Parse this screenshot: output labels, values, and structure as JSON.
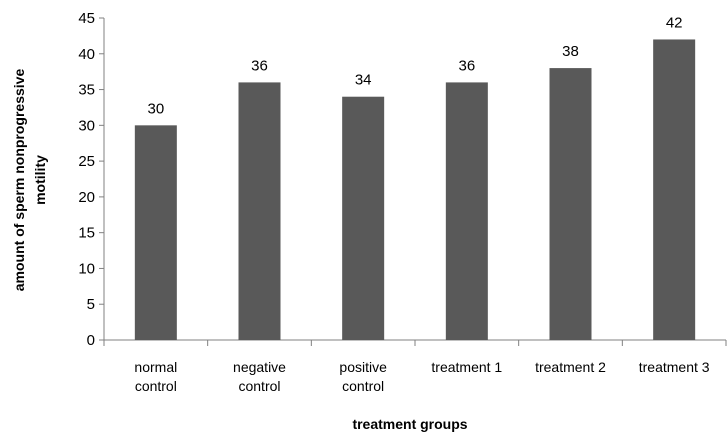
{
  "chart_data": {
    "type": "bar",
    "title": "",
    "xlabel": "treatment groups",
    "ylabel_lines": [
      "amount  of sperm nonprogressive",
      "motility"
    ],
    "ylim": [
      0,
      45
    ],
    "ytick_step": 5,
    "yticks": [
      "0",
      "5",
      "10",
      "15",
      "20",
      "25",
      "30",
      "35",
      "40",
      "45"
    ],
    "categories": [
      [
        "normal",
        "control"
      ],
      [
        "negative",
        "control"
      ],
      [
        "positive",
        "control"
      ],
      [
        "treatment 1"
      ],
      [
        "treatment 2"
      ],
      [
        "treatment 3"
      ]
    ],
    "values": [
      30,
      36,
      34,
      36,
      38,
      42
    ],
    "data_labels": [
      "30",
      "36",
      "34",
      "36",
      "38",
      "42"
    ],
    "bar_color": "#595959",
    "axis_color": "#808080",
    "grid": false,
    "legend": "none"
  }
}
